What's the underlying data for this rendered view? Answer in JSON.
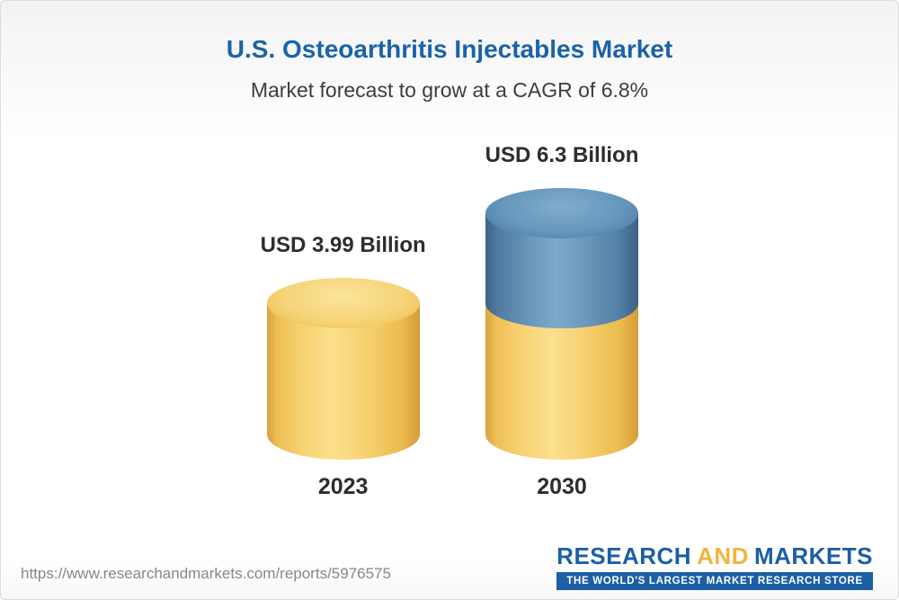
{
  "chart_data": {
    "type": "bar",
    "style": "3d-stacked-cylinder",
    "title": "U.S. Osteoarthritis Injectables Market",
    "subtitle": "Market forecast to grow at a CAGR of 6.8%",
    "cagr_percent": 6.8,
    "unit": "USD Billion",
    "categories": [
      "2023",
      "2030"
    ],
    "values": [
      3.99,
      6.3
    ],
    "value_labels": [
      "USD 3.99 Billion",
      "USD 6.3 Billion"
    ],
    "ylim": [
      0,
      7
    ],
    "legend": "none",
    "grid": "off",
    "colors": {
      "base_segment_yellow": "#F3C95C",
      "growth_segment_blue": "#5E8FB5",
      "title_blue": "#1A63A8",
      "logo_blue": "#1C5FA5",
      "logo_orange": "#F0B440"
    },
    "bars": [
      {
        "category": "2023",
        "label": "USD 3.99 Billion",
        "segments": [
          {
            "name": "market-size-2023",
            "value": 3.99,
            "color": "yellow"
          }
        ]
      },
      {
        "category": "2030",
        "label": "USD 6.3 Billion",
        "segments": [
          {
            "name": "base-2023",
            "value": 3.99,
            "color": "yellow"
          },
          {
            "name": "growth-2023-2030",
            "value": 2.31,
            "color": "blue"
          }
        ]
      }
    ]
  },
  "footer": {
    "report_url": "https://www.researchandmarkets.com/reports/5976575",
    "logo": {
      "word1": "RESEARCH",
      "word2": "AND",
      "word3": "MARKETS",
      "tagline": "THE WORLD'S LARGEST MARKET RESEARCH STORE"
    }
  }
}
